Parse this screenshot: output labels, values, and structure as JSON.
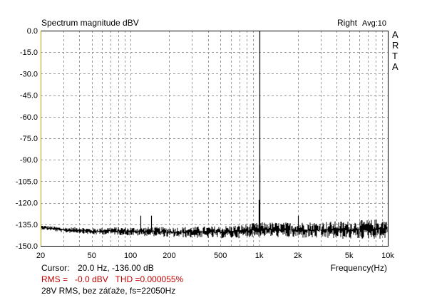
{
  "chart_data": {
    "type": "line",
    "title": "Spectrum magnitude dBV",
    "channel": "Right",
    "avg_label": "Avg:10",
    "logo_letters": [
      "A",
      "R",
      "T",
      "A"
    ],
    "xlabel": "Frequency(Hz)",
    "x_scale": "log",
    "xlim": [
      20,
      10000
    ],
    "ylim": [
      -150,
      0
    ],
    "grid": true,
    "x_ticks": [
      {
        "value": 20,
        "label": "20"
      },
      {
        "value": 50,
        "label": "50"
      },
      {
        "value": 100,
        "label": "100"
      },
      {
        "value": 200,
        "label": "200"
      },
      {
        "value": 500,
        "label": "500"
      },
      {
        "value": 1000,
        "label": "1k"
      },
      {
        "value": 2000,
        "label": "2k"
      },
      {
        "value": 5000,
        "label": "5k"
      },
      {
        "value": 10000,
        "label": "10k"
      }
    ],
    "y_ticks": [
      {
        "value": 0,
        "label": "0.0"
      },
      {
        "value": -15,
        "label": "-15.0"
      },
      {
        "value": -30,
        "label": "-30.0"
      },
      {
        "value": -45,
        "label": "-45.0"
      },
      {
        "value": -60,
        "label": "-60.0"
      },
      {
        "value": -75,
        "label": "-75.0"
      },
      {
        "value": -90,
        "label": "-90.0"
      },
      {
        "value": -105,
        "label": "-105.0"
      },
      {
        "value": -120,
        "label": "-120.0"
      },
      {
        "value": -135,
        "label": "-135.0"
      },
      {
        "value": -150,
        "label": "-150.0"
      }
    ],
    "series": [
      {
        "color": "#000000",
        "noise_floor": [
          [
            20,
            -137
          ],
          [
            25,
            -138
          ],
          [
            30,
            -139
          ],
          [
            40,
            -139
          ],
          [
            50,
            -140
          ],
          [
            70,
            -139.5
          ],
          [
            100,
            -140
          ],
          [
            150,
            -140
          ],
          [
            200,
            -140.5
          ],
          [
            300,
            -140.5
          ],
          [
            500,
            -140.5
          ],
          [
            700,
            -140
          ],
          [
            900,
            -139
          ],
          [
            1100,
            -138.5
          ],
          [
            1500,
            -139
          ],
          [
            2000,
            -139
          ],
          [
            3000,
            -139
          ],
          [
            5000,
            -139
          ],
          [
            7000,
            -138.5
          ],
          [
            10000,
            -138
          ]
        ],
        "peaks": [
          {
            "x": 120,
            "y": -129
          },
          {
            "x": 144,
            "y": -129
          },
          {
            "x": 1000,
            "y": 0
          },
          {
            "x": 1012,
            "y": -94
          },
          {
            "x": 988,
            "y": -118
          },
          {
            "x": 2000,
            "y": -129
          },
          {
            "x": 3000,
            "y": -139
          },
          {
            "x": 5000,
            "y": -139
          }
        ]
      }
    ]
  },
  "footer": {
    "cursor_label": "Cursor:",
    "cursor_value": "20.0 Hz, -136.00 dB",
    "rms_text": "RMS =   -0.0 dBV   THD =0.000055%",
    "note": "28V RMS, bez záťaže, fs=22050Hz"
  }
}
